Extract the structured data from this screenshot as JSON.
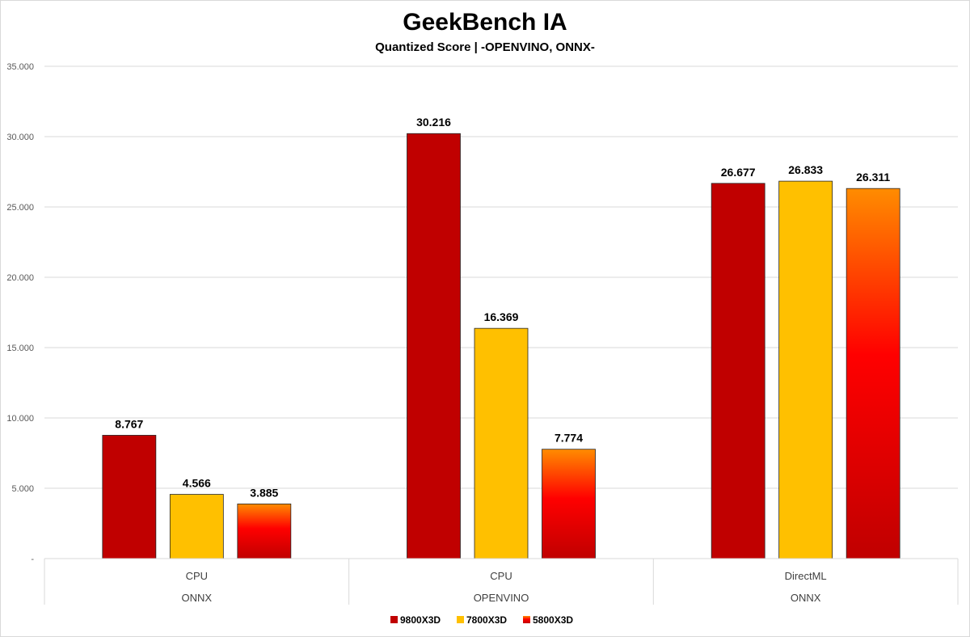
{
  "chart_data": {
    "type": "bar",
    "title": "GeekBench IA",
    "subtitle": "Quantized Score | -OPENVINO, ONNX-",
    "ylim": [
      0,
      35000
    ],
    "ytick_labels": [
      "-",
      "5.000",
      "10.000",
      "15.000",
      "20.000",
      "25.000",
      "30.000",
      "35.000"
    ],
    "grid": true,
    "legend_position": "bottom",
    "categories": [
      {
        "label": "CPU",
        "group": "ONNX"
      },
      {
        "label": "CPU",
        "group": "OPENVINO"
      },
      {
        "label": "DirectML",
        "group": "ONNX"
      }
    ],
    "series": [
      {
        "name": "9800X3D",
        "values": [
          8767,
          30216,
          26677
        ],
        "labels": [
          "8.767",
          "30.216",
          "26.677"
        ],
        "color": "#c00000",
        "fill": "solid"
      },
      {
        "name": "7800X3D",
        "values": [
          4566,
          16369,
          26833
        ],
        "labels": [
          "4.566",
          "16.369",
          "26.833"
        ],
        "color": "#ffc000",
        "fill": "solid"
      },
      {
        "name": "5800X3D",
        "values": [
          3885,
          7774,
          26311
        ],
        "labels": [
          "3.885",
          "7.774",
          "26.311"
        ],
        "color": "#ff0000",
        "fill": "gradient",
        "gradient_colors": [
          "#ff8c00",
          "#ff0000",
          "#c00000"
        ]
      }
    ]
  }
}
